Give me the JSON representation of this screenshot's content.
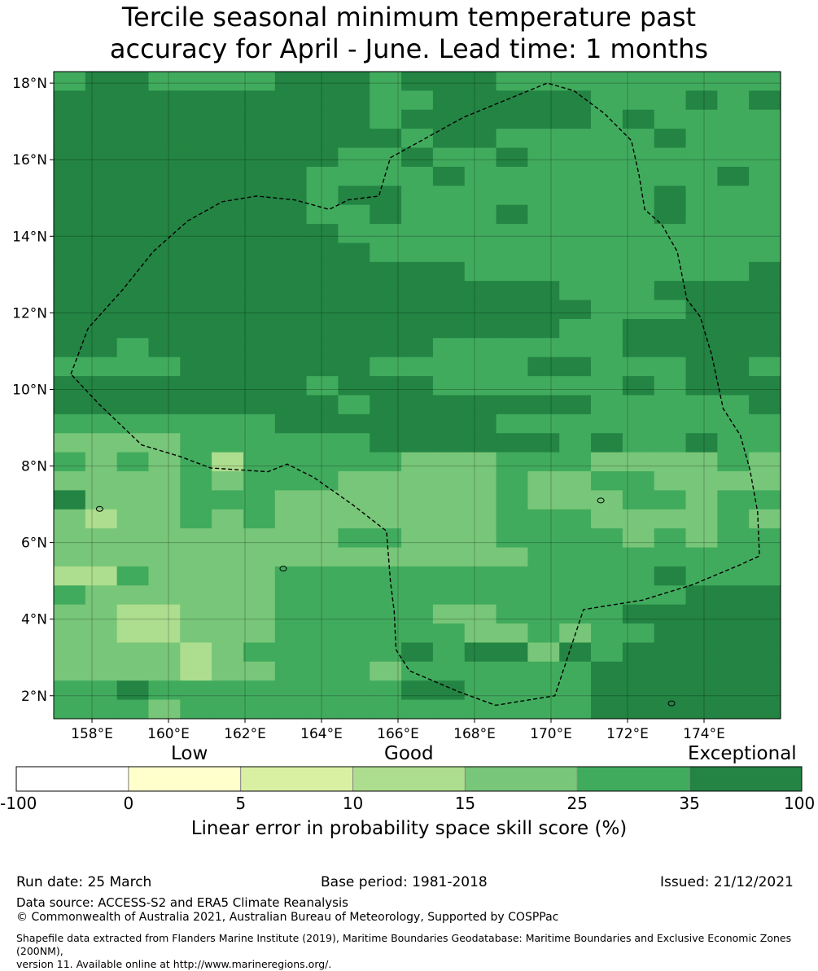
{
  "title_line1": "Tercile seasonal minimum temperature past",
  "title_line2": "accuracy for April - June. Lead time: 1 months",
  "map": {
    "lon_range": [
      157,
      176
    ],
    "lat_range": [
      1.4,
      18.3
    ],
    "lat_ticks": [
      {
        "value": 18,
        "label": "18°N"
      },
      {
        "value": 16,
        "label": "16°N"
      },
      {
        "value": 14,
        "label": "14°N"
      },
      {
        "value": 12,
        "label": "12°N"
      },
      {
        "value": 10,
        "label": "10°N"
      },
      {
        "value": 8,
        "label": "8°N"
      },
      {
        "value": 6,
        "label": "6°N"
      },
      {
        "value": 4,
        "label": "4°N"
      },
      {
        "value": 2,
        "label": "2°N"
      }
    ],
    "lon_ticks": [
      {
        "value": 158,
        "label": "158°E"
      },
      {
        "value": 160,
        "label": "160°E"
      },
      {
        "value": 162,
        "label": "162°E"
      },
      {
        "value": 164,
        "label": "164°E"
      },
      {
        "value": 166,
        "label": "166°E"
      },
      {
        "value": 168,
        "label": "168°E"
      },
      {
        "value": 170,
        "label": "170°E"
      },
      {
        "value": 172,
        "label": "172°E"
      },
      {
        "value": 174,
        "label": "174°E"
      }
    ],
    "grid_lines": true,
    "eez_boundary": [
      [
        157.45,
        10.4
      ],
      [
        157.9,
        11.6
      ],
      [
        158.8,
        12.6
      ],
      [
        159.6,
        13.6
      ],
      [
        160.5,
        14.4
      ],
      [
        161.4,
        14.9
      ],
      [
        162.3,
        15.05
      ],
      [
        163.3,
        14.95
      ],
      [
        164.2,
        14.7
      ],
      [
        164.7,
        14.95
      ],
      [
        165.5,
        15.05
      ],
      [
        165.8,
        16.05
      ],
      [
        167.7,
        17.1
      ],
      [
        169.9,
        18.0
      ],
      [
        170.6,
        17.8
      ],
      [
        171.4,
        17.2
      ],
      [
        172.1,
        16.5
      ],
      [
        172.3,
        15.6
      ],
      [
        172.45,
        14.7
      ],
      [
        172.9,
        14.3
      ],
      [
        173.3,
        13.6
      ],
      [
        173.55,
        12.35
      ],
      [
        173.9,
        11.9
      ],
      [
        174.2,
        10.9
      ],
      [
        174.5,
        9.5
      ],
      [
        174.95,
        8.8
      ],
      [
        175.2,
        7.9
      ],
      [
        175.4,
        6.8
      ],
      [
        175.45,
        5.65
      ],
      [
        174.9,
        5.4
      ],
      [
        173.7,
        4.9
      ],
      [
        172.4,
        4.5
      ],
      [
        170.85,
        4.25
      ],
      [
        170.1,
        2.0
      ],
      [
        168.55,
        1.75
      ],
      [
        167.6,
        2.1
      ],
      [
        166.3,
        2.65
      ],
      [
        165.95,
        3.2
      ],
      [
        165.9,
        4.2
      ],
      [
        165.8,
        5.0
      ],
      [
        165.7,
        6.3
      ],
      [
        164.8,
        7.0
      ],
      [
        163.8,
        7.7
      ],
      [
        163.1,
        8.05
      ],
      [
        162.6,
        7.85
      ],
      [
        161.1,
        7.95
      ],
      [
        160.3,
        8.25
      ],
      [
        159.3,
        8.55
      ],
      [
        158.2,
        9.6
      ],
      [
        157.45,
        10.4
      ]
    ],
    "islands": [
      {
        "lon": 158.2,
        "lat": 6.88,
        "label": ""
      },
      {
        "lon": 163.0,
        "lat": 5.32,
        "label": ""
      },
      {
        "lon": 171.3,
        "lat": 7.1,
        "label": ""
      },
      {
        "lon": 173.15,
        "lat": 1.8,
        "label": ""
      }
    ]
  },
  "skill_grid": {
    "lon0": 157.0,
    "lat_top": 18.3,
    "rows": [
      "34433334443444333333333",
      "44444444443344444333434",
      "44444444443444444343333",
      "44444444444344333334333",
      "44444444433433433333333",
      "44444444333343333333343",
      "44444444344333333334333",
      "44444444334333433334333",
      "44444444433333333333333",
      "44444444443333333333333",
      "44444444444443333333334",
      "44444444444444443334444",
      "44444444444444444333444",
      "44444444444444443344444",
      "44344444444433333344444",
      "33334444443333344333443",
      "44444444344433333343444",
      "44444444434444444333334",
      "33333334444444333333333",
      "22223333334444443433433",
      "32323133333222333222232",
      "22223233322222322332222",
      "42223332222222322233233",
      "21223232222222333222232",
      "22222222233222333323233",
      "22222222222222233333333",
      "11322223333333333334333",
      "32222223333333333333444",
      "22112223333322333344444",
      "22112223333332232334444",
      "22221233333434424344444",
      "22221223332333333444444",
      "33433333333443333444444",
      "33323333333333333444444"
    ]
  },
  "colorbar": {
    "category_labels": [
      "Low",
      "Good",
      "Exceptional"
    ],
    "ticks": [
      "-100",
      "0",
      "5",
      "10",
      "15",
      "25",
      "35",
      "100"
    ],
    "colors": [
      "#ffffff",
      "#ffffcc",
      "#d9f0a3",
      "#addd8e",
      "#78c679",
      "#41ab5d",
      "#238443"
    ],
    "title": "Linear error in probability space skill score (%)"
  },
  "footer": {
    "run_date": "Run date: 25 March",
    "base_period": "Base period: 1981-2018",
    "issued": "Issued: 21/12/2021",
    "data_source": "Data source: ACCESS-S2 and ERA5 Climate Reanalysis",
    "copyright": "© Commonwealth of Australia 2021, Australian Bureau of Meteorology, Supported by COSPPac",
    "shapefile_line1": "Shapefile data extracted from Flanders Marine Institute (2019), Maritime Boundaries Geodatabase: Maritime Boundaries and Exclusive Economic Zones (200NM),",
    "shapefile_line2": "version 11. Available online at http://www.marineregions.org/."
  }
}
